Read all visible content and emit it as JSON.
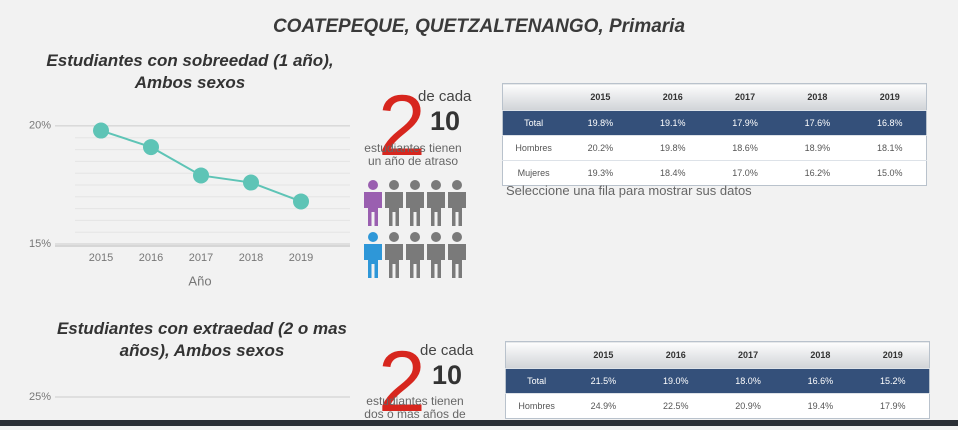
{
  "title": "COATEPEQUE, QUETZALTENANGO, Primaria",
  "chart_data": [
    {
      "type": "line",
      "title": "Estudiantes con sobreedad (1 año), Ambos sexos",
      "categories": [
        "2015",
        "2016",
        "2017",
        "2018",
        "2019"
      ],
      "values": [
        19.8,
        19.1,
        17.9,
        17.6,
        16.8
      ],
      "color": "#5ec4b6",
      "x_label": "Año",
      "ylim": [
        15,
        20.5
      ],
      "yticks": [
        {
          "value": 20,
          "label": "20%"
        },
        {
          "value": 15,
          "label": "15%"
        }
      ],
      "grid": true
    },
    {
      "type": "line",
      "title": "Estudiantes con extraedad (2 o mas años), Ambos sexos",
      "ylim": [
        10,
        26
      ],
      "yticks": [
        {
          "value": 25,
          "label": "25%"
        }
      ],
      "grid": true
    }
  ],
  "infographics": [
    {
      "number": "2",
      "de_cada": "de cada",
      "total": "10",
      "text": "estudiantes tienen un año de atraso"
    },
    {
      "number": "2",
      "de_cada": "de cada",
      "total": "10",
      "text": "estudiantes tienen dos o mas años de"
    }
  ],
  "tables": [
    {
      "headers": [
        "2015",
        "2016",
        "2017",
        "2018",
        "2019"
      ],
      "rows": [
        [
          "Total",
          "19.8%",
          "19.1%",
          "17.9%",
          "17.6%",
          "16.8%"
        ],
        [
          "Hombres",
          "20.2%",
          "19.8%",
          "18.6%",
          "18.9%",
          "18.1%"
        ],
        [
          "Mujeres",
          "19.3%",
          "18.4%",
          "17.0%",
          "16.2%",
          "15.0%"
        ]
      ]
    },
    {
      "headers": [
        "2015",
        "2016",
        "2017",
        "2018",
        "2019"
      ],
      "rows": [
        [
          "Total",
          "21.5%",
          "19.0%",
          "18.0%",
          "16.6%",
          "15.2%"
        ],
        [
          "Hombres",
          "24.9%",
          "22.5%",
          "20.9%",
          "19.4%",
          "17.9%"
        ]
      ]
    }
  ],
  "note": "Seleccione una fila para mostrar sus datos"
}
